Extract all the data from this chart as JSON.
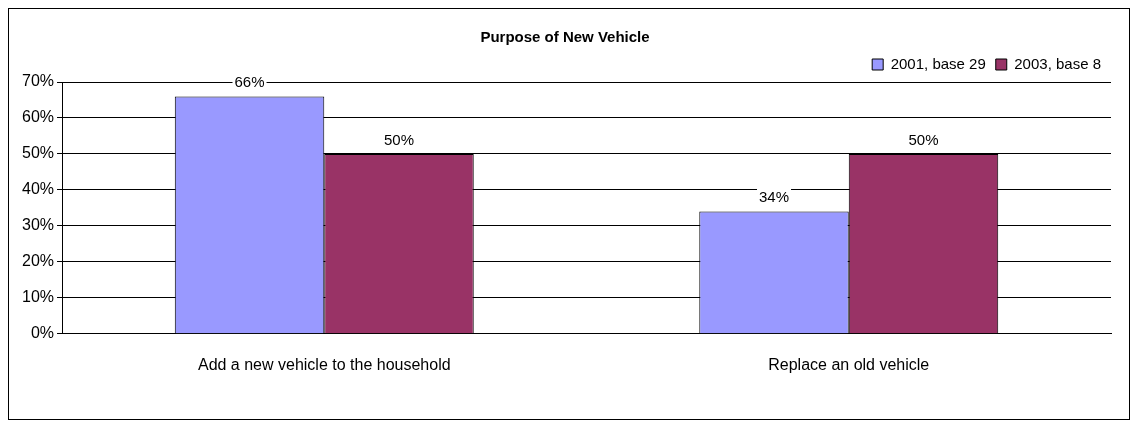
{
  "chart_data": {
    "type": "bar",
    "title": "Purpose of New Vehicle",
    "categories": [
      "Add a new vehicle to the household",
      "Replace an old vehicle"
    ],
    "series": [
      {
        "name": "2001, base 29",
        "color": "#9999ff",
        "values": [
          66,
          34
        ],
        "value_labels": [
          "66%",
          "34%"
        ]
      },
      {
        "name": "2003, base 8",
        "color": "#993366",
        "values": [
          50,
          50
        ],
        "value_labels": [
          "50%",
          "50%"
        ]
      }
    ],
    "ylim": [
      0,
      70
    ],
    "yticks": [
      {
        "value": 0,
        "label": "0%"
      },
      {
        "value": 10,
        "label": "10%"
      },
      {
        "value": 20,
        "label": "20%"
      },
      {
        "value": 30,
        "label": "30%"
      },
      {
        "value": 40,
        "label": "40%"
      },
      {
        "value": 50,
        "label": "50%"
      },
      {
        "value": 60,
        "label": "60%"
      },
      {
        "value": 70,
        "label": "70%"
      }
    ],
    "grid": "y",
    "legend": "top right"
  }
}
